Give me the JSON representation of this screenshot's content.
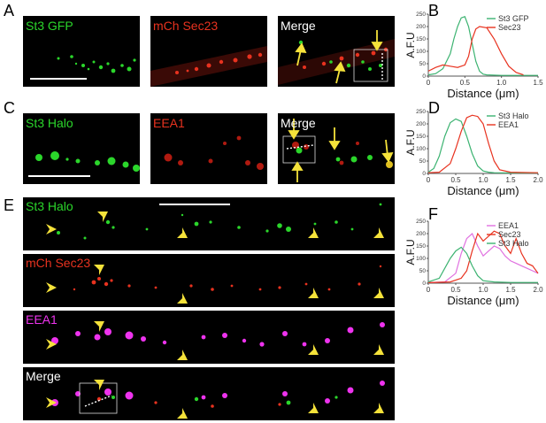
{
  "panel_letters": {
    "A": "A",
    "B": "B",
    "C": "C",
    "D": "D",
    "E": "E",
    "F": "F"
  },
  "panel_A": {
    "ch1": "St3 GFP",
    "ch2": "mCh Sec23",
    "merge": "Merge"
  },
  "panel_C": {
    "ch1": "St3 Halo",
    "ch2": "EEA1",
    "merge": "Merge"
  },
  "panel_E": {
    "ch1": "St3 Halo",
    "ch2": "mCh Sec23",
    "ch3": "EEA1",
    "merge": "Merge"
  },
  "colors": {
    "green": "#2bd62b",
    "red": "#e8321f",
    "magenta": "#ee33ee",
    "arrow": "#f5e23a",
    "pink": "#e070e0"
  },
  "chart_data": [
    {
      "id": "B",
      "type": "line",
      "xlabel": "Distance (μm)",
      "ylabel": "A.F.U",
      "xlim": [
        0,
        1.5
      ],
      "ylim": [
        0,
        250
      ],
      "xticks": [
        "0",
        "0.5",
        "1.0",
        "1.5"
      ],
      "yticks": [
        "0",
        "50",
        "100",
        "150",
        "200",
        "250"
      ],
      "series": [
        {
          "name": "St3 GFP",
          "color": "#3cb371",
          "x": [
            0,
            0.1,
            0.2,
            0.3,
            0.35,
            0.4,
            0.45,
            0.5,
            0.55,
            0.6,
            0.65,
            0.7,
            0.75,
            0.8,
            1.0,
            1.2,
            1.5
          ],
          "y": [
            5,
            10,
            30,
            90,
            150,
            200,
            235,
            240,
            200,
            130,
            60,
            20,
            8,
            5,
            3,
            3,
            3
          ]
        },
        {
          "name": "Sec23",
          "color": "#e8321f",
          "x": [
            0,
            0.1,
            0.2,
            0.3,
            0.4,
            0.5,
            0.55,
            0.6,
            0.65,
            0.7,
            0.8,
            0.9,
            1.0,
            1.1,
            1.2,
            1.3
          ],
          "y": [
            20,
            35,
            45,
            40,
            35,
            45,
            80,
            150,
            190,
            200,
            195,
            150,
            90,
            40,
            15,
            5
          ]
        }
      ]
    },
    {
      "id": "D",
      "type": "line",
      "xlabel": "Distance (μm)",
      "ylabel": "A.F.U",
      "xlim": [
        0,
        2.0
      ],
      "ylim": [
        0,
        250
      ],
      "xticks": [
        "0",
        "0.5",
        "1.0",
        "1.5",
        "2.0"
      ],
      "yticks": [
        "0",
        "50",
        "100",
        "150",
        "200",
        "250"
      ],
      "series": [
        {
          "name": "St3 Halo",
          "color": "#3cb371",
          "x": [
            0,
            0.1,
            0.2,
            0.3,
            0.4,
            0.5,
            0.6,
            0.7,
            0.8,
            0.9,
            1.0,
            1.1,
            1.2,
            1.5,
            2.0
          ],
          "y": [
            5,
            20,
            70,
            150,
            205,
            220,
            210,
            150,
            80,
            30,
            10,
            5,
            3,
            2,
            2
          ]
        },
        {
          "name": "EEA1",
          "color": "#e8321f",
          "x": [
            0,
            0.2,
            0.4,
            0.5,
            0.6,
            0.7,
            0.8,
            0.9,
            1.0,
            1.1,
            1.2,
            1.3,
            1.5,
            2.0
          ],
          "y": [
            3,
            5,
            40,
            100,
            170,
            225,
            235,
            230,
            200,
            120,
            50,
            15,
            5,
            3
          ]
        }
      ]
    },
    {
      "id": "F",
      "type": "line",
      "xlabel": "Distance (μm)",
      "ylabel": "A.F.U",
      "xlim": [
        0,
        2.0
      ],
      "ylim": [
        0,
        250
      ],
      "xticks": [
        "0",
        "0.5",
        "1.0",
        "1.5",
        "2.0"
      ],
      "yticks": [
        "0",
        "50",
        "100",
        "150",
        "200",
        "250"
      ],
      "series": [
        {
          "name": "EEA1",
          "color": "#e070e0",
          "x": [
            0,
            0.3,
            0.5,
            0.6,
            0.7,
            0.8,
            0.9,
            1.0,
            1.1,
            1.2,
            1.3,
            1.4,
            1.5,
            1.6,
            1.7,
            1.8,
            1.9,
            2.0
          ],
          "y": [
            2,
            5,
            40,
            120,
            180,
            200,
            150,
            110,
            130,
            150,
            140,
            110,
            90,
            80,
            70,
            60,
            50,
            40
          ]
        },
        {
          "name": "Sec23",
          "color": "#e8321f",
          "x": [
            0,
            0.4,
            0.6,
            0.7,
            0.8,
            0.9,
            1.0,
            1.1,
            1.2,
            1.3,
            1.4,
            1.5,
            1.6,
            1.7,
            1.8,
            1.9,
            2.0
          ],
          "y": [
            2,
            5,
            20,
            50,
            130,
            200,
            170,
            190,
            210,
            200,
            150,
            120,
            180,
            120,
            80,
            70,
            40
          ]
        },
        {
          "name": "St3 Halo",
          "color": "#3cb371",
          "x": [
            0,
            0.2,
            0.3,
            0.4,
            0.5,
            0.6,
            0.7,
            0.8,
            0.9,
            1.0,
            1.2,
            1.5,
            2.0
          ],
          "y": [
            5,
            20,
            60,
            100,
            130,
            145,
            120,
            70,
            30,
            10,
            5,
            3,
            3
          ]
        }
      ]
    }
  ]
}
